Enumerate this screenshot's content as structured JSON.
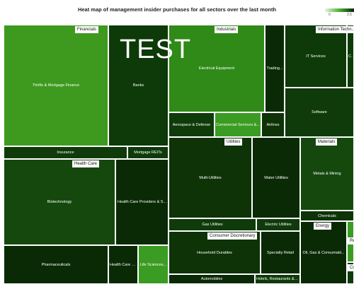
{
  "chart_data": {
    "type": "treemap",
    "title": "Heat map of management insider purchases for all sectors over the last month",
    "legend": {
      "ticks": [
        "0",
        "2.5"
      ],
      "placement": "top-right"
    },
    "watermark": "TEST",
    "color_scale": [
      "#e5f5e0",
      "#4bb02e",
      "#0a2a06"
    ],
    "sectors": [
      {
        "name": "Financials",
        "industries": [
          "Thrifts & Mortgage Finance",
          "Banks",
          "Insurance",
          "Mortgage REITs"
        ]
      },
      {
        "name": "Industrials",
        "industries": [
          "Electrical Equipment",
          "Trading...",
          "Aerospace & Defense",
          "Commercial Services &...",
          "Airlines"
        ]
      },
      {
        "name": "Information Techn...",
        "industries": [
          "IT Services",
          "Co...",
          "Software"
        ]
      },
      {
        "name": "Health Care",
        "industries": [
          "Biotechnology",
          "Health Care Providers & S...",
          "Pharmaceuticals",
          "Health Care E...",
          "Life Sciences..."
        ]
      },
      {
        "name": "Utilities",
        "industries": [
          "Multi-Utilities",
          "Water Utilities",
          "Gas Utilities",
          "Electric Utilities"
        ]
      },
      {
        "name": "Materials",
        "industries": [
          "Metals & Mining",
          "Chemicals"
        ]
      },
      {
        "name": "Consumer Discretionary",
        "industries": [
          "Household Durables",
          "Specialty Retail",
          "Automobiles",
          "Hotels, Restaurants & Leisure"
        ]
      },
      {
        "name": "Energy",
        "industries": [
          "Oil, Gas & Consumabl..."
        ]
      },
      {
        "name": "Re...",
        "industries": []
      },
      {
        "name": "Co...",
        "industries": []
      }
    ]
  }
}
